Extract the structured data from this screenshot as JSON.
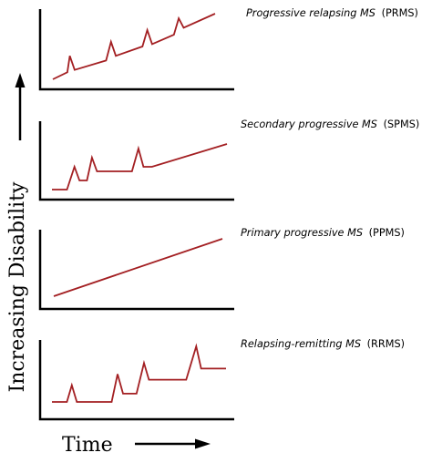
{
  "figure": {
    "ylabel": "Increasing Disability",
    "xlabel": "Time",
    "axis_color": "#000000",
    "curve_color": "#a31f22"
  },
  "panels": [
    {
      "id": "prms",
      "title_main": "Progressive relapsing MS",
      "title_abbr": "(PRMS)",
      "curve": [
        [
          0,
          0
        ],
        [
          3,
          1.5
        ],
        [
          3.5,
          5
        ],
        [
          4.5,
          2
        ],
        [
          11,
          4
        ],
        [
          12,
          8
        ],
        [
          13,
          5
        ],
        [
          18.5,
          7
        ],
        [
          19.5,
          10.5
        ],
        [
          20.5,
          7.5
        ],
        [
          25,
          9.5
        ],
        [
          26,
          13
        ],
        [
          27,
          11
        ],
        [
          33.5,
          14
        ]
      ]
    },
    {
      "id": "spms",
      "title_main": "Secondary progressive MS",
      "title_abbr": "(SPMS)",
      "curve": [
        [
          0,
          0
        ],
        [
          3,
          0
        ],
        [
          4.5,
          5
        ],
        [
          5.5,
          2
        ],
        [
          7,
          2
        ],
        [
          8,
          7
        ],
        [
          9,
          4
        ],
        [
          16,
          4
        ],
        [
          17.3,
          9
        ],
        [
          18.3,
          5
        ],
        [
          20,
          5
        ],
        [
          35,
          10
        ]
      ]
    },
    {
      "id": "ppms",
      "title_main": "Primary progressive MS",
      "title_abbr": "(PPMS)",
      "curve": [
        [
          0,
          0
        ],
        [
          35,
          10
        ]
      ]
    },
    {
      "id": "rrms",
      "title_main": "Relapsing-remitting MS",
      "title_abbr": "(RRMS)",
      "curve": [
        [
          0,
          0
        ],
        [
          3,
          0
        ],
        [
          4,
          3
        ],
        [
          5,
          0
        ],
        [
          12,
          0
        ],
        [
          13.2,
          5
        ],
        [
          14.3,
          1.5
        ],
        [
          17,
          1.5
        ],
        [
          18.5,
          7
        ],
        [
          19.5,
          4
        ],
        [
          27,
          4
        ],
        [
          29,
          10
        ],
        [
          30,
          6
        ],
        [
          35,
          6
        ]
      ]
    }
  ]
}
